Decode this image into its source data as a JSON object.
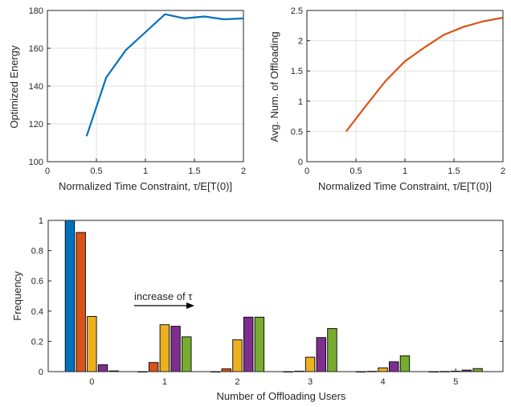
{
  "chart_data": [
    {
      "type": "line",
      "xlabel": "Normalized Time Constraint, τ/E[T(0)]",
      "ylabel": "Optimized Energy",
      "xlim": [
        0,
        2
      ],
      "ylim": [
        100,
        180
      ],
      "xticks": [
        "0",
        "0.5",
        "1",
        "1.5",
        "2"
      ],
      "yticks": [
        "100",
        "120",
        "140",
        "160",
        "180"
      ],
      "grid": true,
      "series": [
        {
          "color": "#0072BD",
          "x": [
            0.4,
            0.6,
            0.8,
            1.0,
            1.2,
            1.4,
            1.6,
            1.8,
            2.0
          ],
          "y": [
            113.5,
            144.5,
            159,
            168.5,
            178,
            175.8,
            176.8,
            175.3,
            175.8
          ]
        }
      ]
    },
    {
      "type": "line",
      "xlabel": "Normalized Time Constraint, τ/E[T(0)]",
      "ylabel": "Avg. Num. of Offloading",
      "xlim": [
        0,
        2
      ],
      "ylim": [
        0,
        2.5
      ],
      "xticks": [
        "0",
        "0.5",
        "1",
        "1.5",
        "2"
      ],
      "yticks": [
        "0",
        "0.5",
        "1",
        "1.5",
        "2",
        "2.5"
      ],
      "grid": true,
      "series": [
        {
          "color": "#D95319",
          "x": [
            0.4,
            0.6,
            0.8,
            1.0,
            1.2,
            1.4,
            1.6,
            1.8,
            2.0
          ],
          "y": [
            0.5,
            0.92,
            1.33,
            1.66,
            1.89,
            2.1,
            2.23,
            2.32,
            2.38
          ]
        }
      ]
    },
    {
      "type": "bar",
      "xlabel": "Number of Offloading Users",
      "ylabel": "Frequency",
      "ylim": [
        0,
        1
      ],
      "categories": [
        "0",
        "1",
        "2",
        "3",
        "4",
        "5"
      ],
      "yticks": [
        "0",
        "0.2",
        "0.4",
        "0.6",
        "0.8",
        "1"
      ],
      "annotation": "increase of τ",
      "grid": false,
      "series": [
        {
          "color": "#0072BD",
          "values": [
            1.0,
            0.0,
            0.0,
            0.0,
            0.0,
            0.0
          ]
        },
        {
          "color": "#D95319",
          "values": [
            0.92,
            0.06,
            0.018,
            0.003,
            0.002,
            0.001
          ]
        },
        {
          "color": "#EDB120",
          "values": [
            0.365,
            0.31,
            0.21,
            0.095,
            0.025,
            0.003
          ]
        },
        {
          "color": "#7E2F8E",
          "values": [
            0.045,
            0.3,
            0.36,
            0.225,
            0.065,
            0.01
          ]
        },
        {
          "color": "#77AC30",
          "values": [
            0.005,
            0.23,
            0.36,
            0.285,
            0.105,
            0.02
          ]
        }
      ]
    }
  ]
}
